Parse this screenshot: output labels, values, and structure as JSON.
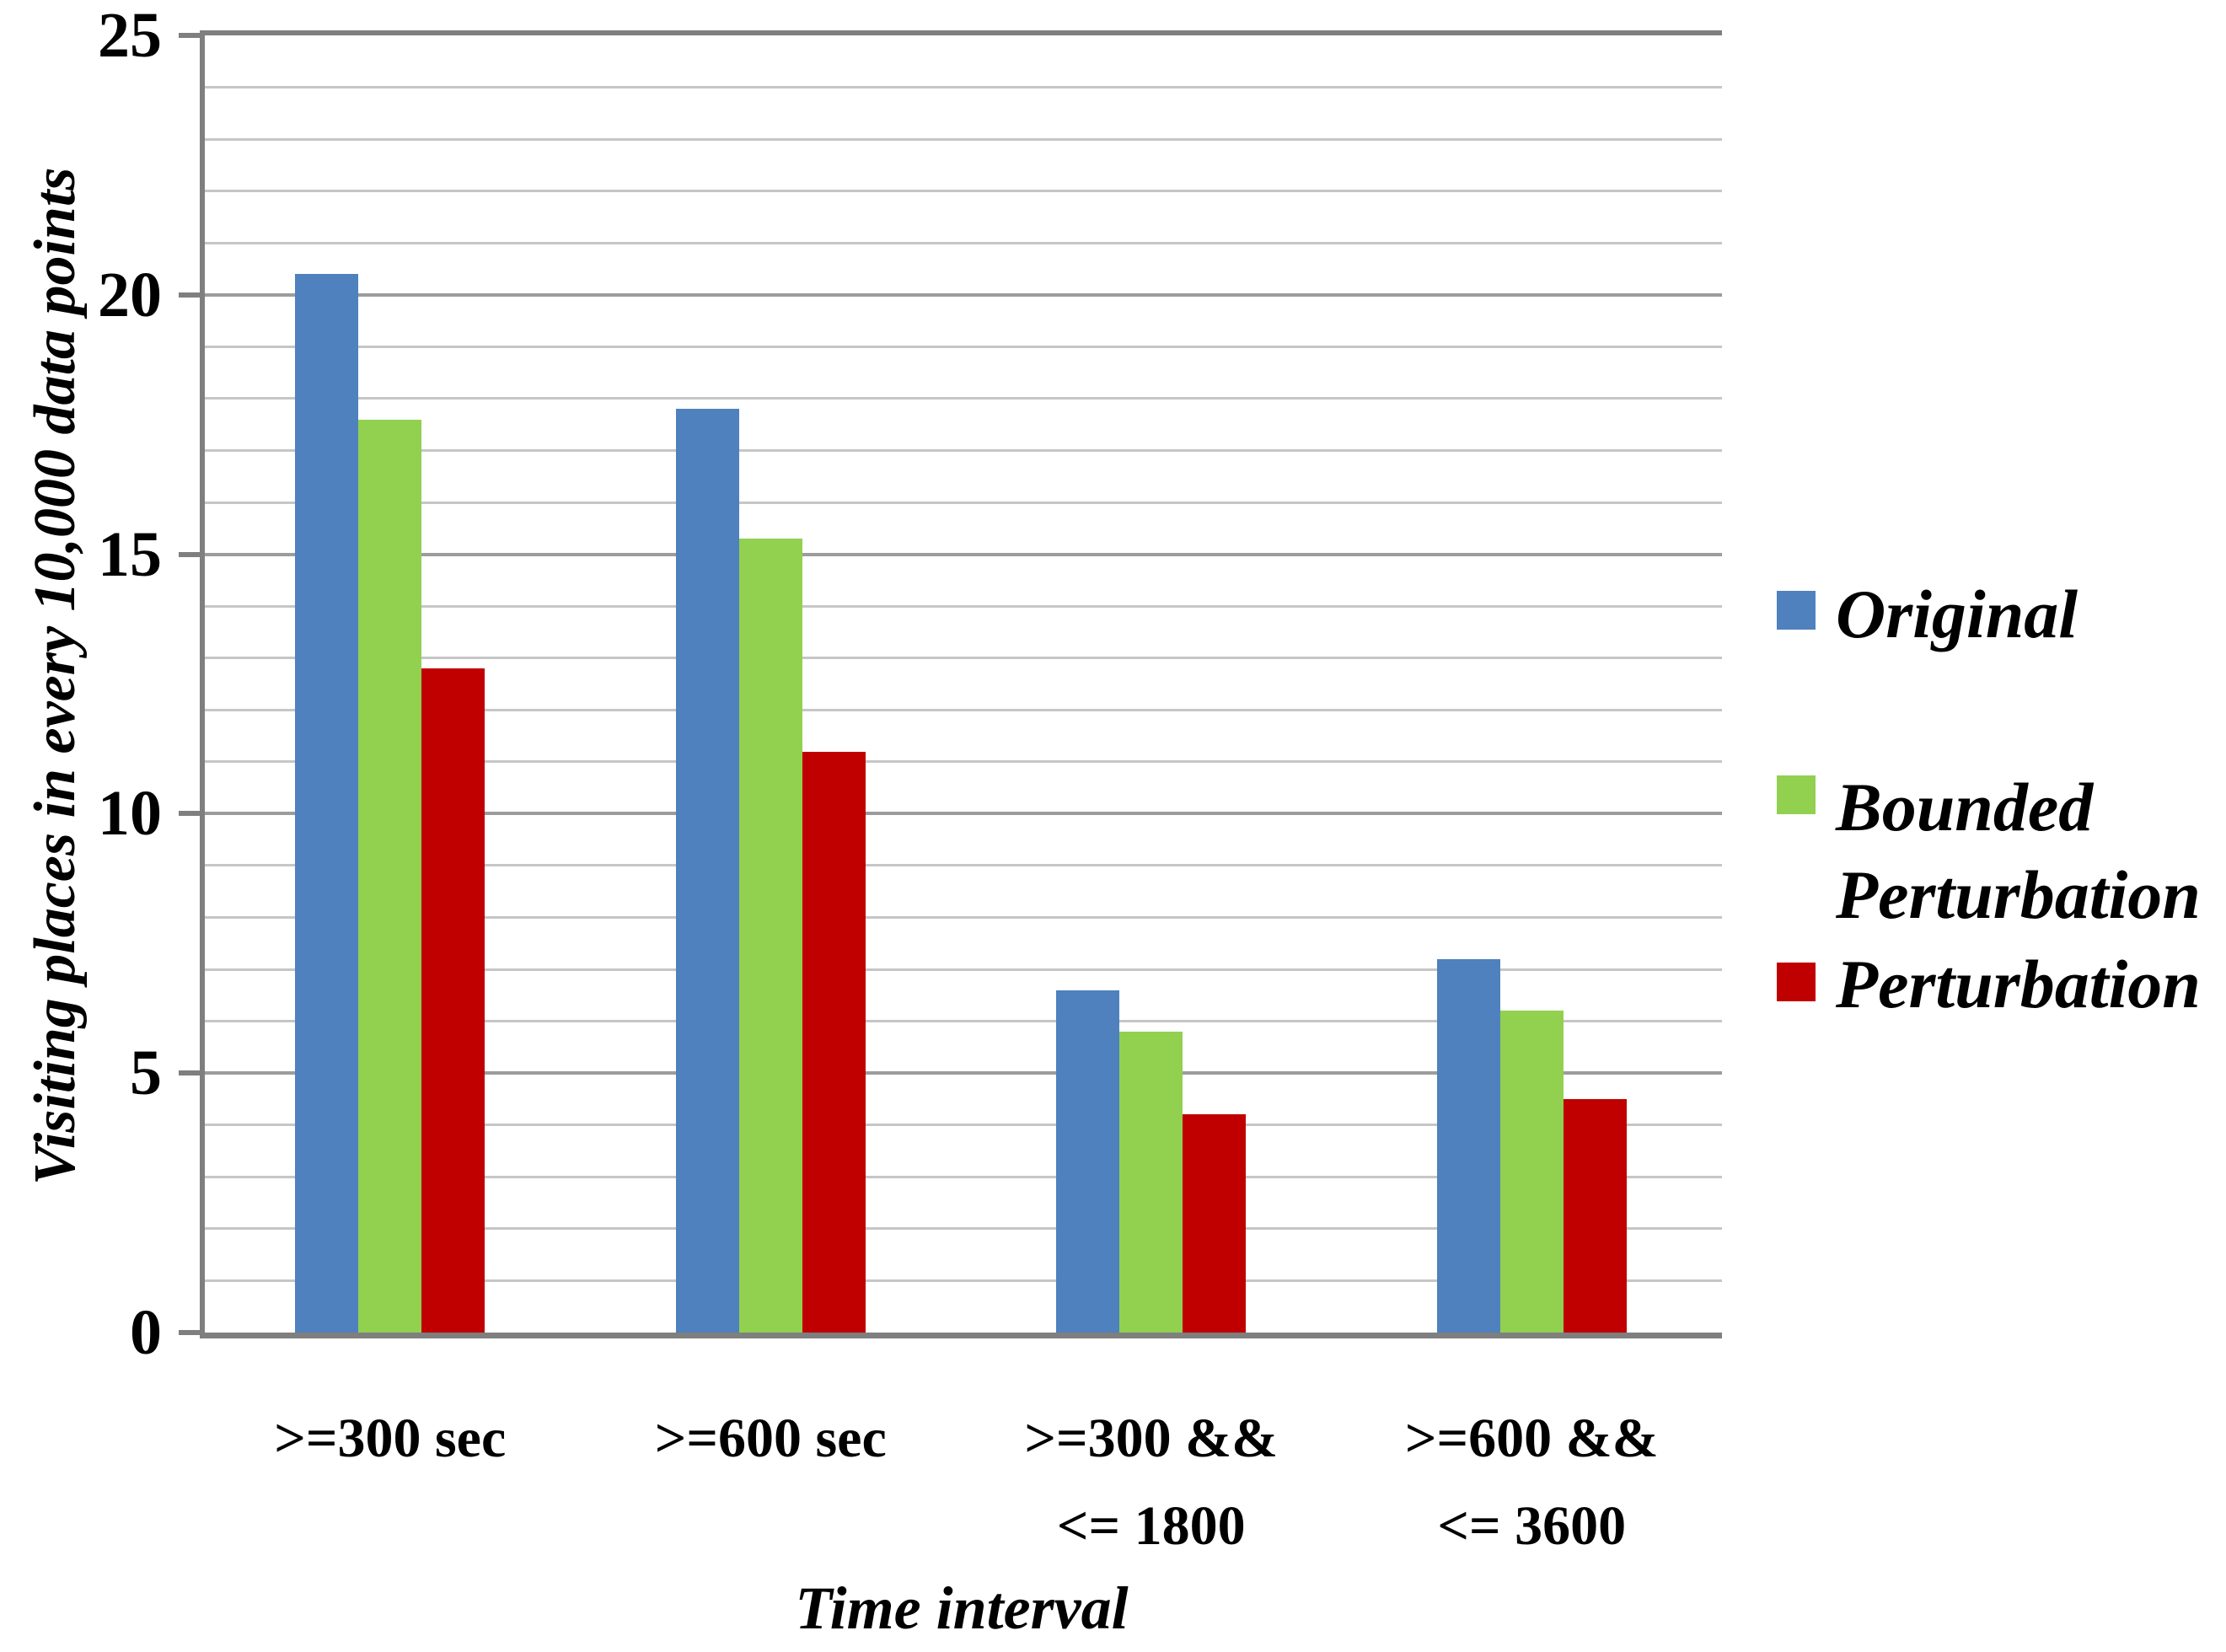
{
  "chart_data": {
    "type": "bar",
    "title": "",
    "xlabel": "Time interval",
    "ylabel": "Visiting places in every 10,000 data points",
    "categories": [
      ">=300 sec",
      ">=600 sec",
      ">=300 && <= 1800",
      ">=600 && <= 3600"
    ],
    "category_label_lines": [
      [
        ">=300 sec"
      ],
      [
        ">=600 sec"
      ],
      [
        ">=300 &&",
        "<= 1800"
      ],
      [
        ">=600 &&",
        "<= 3600"
      ]
    ],
    "series": [
      {
        "name": "Original",
        "color": "#4e81bd",
        "values": [
          20.4,
          17.8,
          6.6,
          7.2
        ]
      },
      {
        "name": "Bounded Perturbation",
        "color": "#92d050",
        "values": [
          17.6,
          15.3,
          5.8,
          6.2
        ]
      },
      {
        "name": "Perturbation",
        "color": "#c00000",
        "values": [
          12.8,
          11.2,
          4.2,
          4.5
        ]
      }
    ],
    "ylim": [
      0,
      25
    ],
    "ytick_major": [
      0,
      5,
      10,
      15,
      20,
      25
    ],
    "ytick_labels": [
      "0",
      "5",
      "10",
      "15",
      "20",
      "25"
    ],
    "minor_unit": 1,
    "grid": "horizontal",
    "legend_position": "right"
  },
  "style_colors": {
    "axis": "#7f7f7f",
    "major_gridline": "#9c9c9c",
    "minor_gridline": "#c6c6c6",
    "background": "#ffffff",
    "text": "#000000"
  }
}
